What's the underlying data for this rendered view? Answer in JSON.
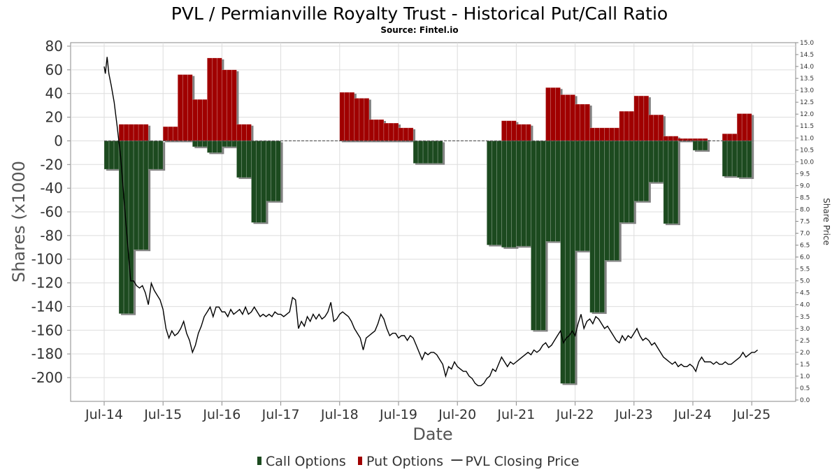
{
  "chart_data": {
    "type": "bar",
    "title": "PVL / Permianville Royalty Trust - Historical Put/Call Ratio",
    "subtitle": "Source: Fintel.io",
    "xlabel": "Date",
    "ylabel": "Shares (x1000",
    "y2label": "Share Price",
    "ylim": [
      -220,
      80
    ],
    "y2lim": [
      0,
      15
    ],
    "yticks": [
      "80",
      "60",
      "40",
      "20",
      "0",
      "-20",
      "-40",
      "-60",
      "-80",
      "-100",
      "-120",
      "-140",
      "-160",
      "-180",
      "-200"
    ],
    "y2ticks": [
      "15.0",
      "14.5",
      "14.0",
      "13.5",
      "13.0",
      "12.5",
      "12.0",
      "11.5",
      "11.0",
      "10.5",
      "10.0",
      "9.5",
      "9.0",
      "8.5",
      "8.0",
      "7.5",
      "7.0",
      "6.5",
      "6.0",
      "5.5",
      "5.0",
      "4.5",
      "4.0",
      "3.5",
      "3.0",
      "2.5",
      "2.0",
      "1.5",
      "1.0",
      "0.5",
      "0.0"
    ],
    "xticks": [
      "Jul-14",
      "Jul-15",
      "Jul-16",
      "Jul-17",
      "Jul-18",
      "Jul-19",
      "Jul-20",
      "Jul-21",
      "Jul-22",
      "Jul-23",
      "Jul-24",
      "Jul-25"
    ],
    "grid": true,
    "legend_position": "bottom",
    "legend": [
      {
        "label": "Call Options",
        "marker": "bar",
        "color": "#1c4a1f"
      },
      {
        "label": "Put Options",
        "marker": "bar",
        "color": "#a00000"
      },
      {
        "label": "PVL Closing Price",
        "marker": "line",
        "color": "#000000"
      }
    ],
    "colors": {
      "call": "#1c4a1f",
      "put": "#a00000",
      "price": "#000000",
      "shadow": "#808080"
    },
    "periods": [
      {
        "start": 2014.5,
        "end": 2014.75,
        "call": -24,
        "put": 0
      },
      {
        "start": 2014.75,
        "end": 2015.0,
        "call": -146,
        "put": 14
      },
      {
        "start": 2015.0,
        "end": 2015.25,
        "call": -92,
        "put": 14
      },
      {
        "start": 2015.25,
        "end": 2015.5,
        "call": -24,
        "put": 0
      },
      {
        "start": 2015.5,
        "end": 2015.75,
        "call": 0,
        "put": 12
      },
      {
        "start": 2015.75,
        "end": 2016.0,
        "call": 0,
        "put": 56
      },
      {
        "start": 2016.0,
        "end": 2016.25,
        "call": -5,
        "put": 35
      },
      {
        "start": 2016.25,
        "end": 2016.5,
        "call": -10,
        "put": 70
      },
      {
        "start": 2016.5,
        "end": 2016.75,
        "call": -5,
        "put": 60
      },
      {
        "start": 2016.75,
        "end": 2017.0,
        "call": -31,
        "put": 14
      },
      {
        "start": 2017.0,
        "end": 2017.25,
        "call": -69,
        "put": 0
      },
      {
        "start": 2017.25,
        "end": 2017.5,
        "call": -51,
        "put": 0
      },
      {
        "start": 2018.5,
        "end": 2018.75,
        "call": 0,
        "put": 41
      },
      {
        "start": 2018.75,
        "end": 2019.0,
        "call": 0,
        "put": 36
      },
      {
        "start": 2019.0,
        "end": 2019.25,
        "call": 0,
        "put": 18
      },
      {
        "start": 2019.25,
        "end": 2019.5,
        "call": 0,
        "put": 15
      },
      {
        "start": 2019.5,
        "end": 2019.75,
        "call": 0,
        "put": 11
      },
      {
        "start": 2019.75,
        "end": 2020.25,
        "call": -19,
        "put": 0
      },
      {
        "start": 2021.0,
        "end": 2021.25,
        "call": -88,
        "put": 0
      },
      {
        "start": 2021.25,
        "end": 2021.5,
        "call": -90,
        "put": 17
      },
      {
        "start": 2021.5,
        "end": 2021.75,
        "call": -89,
        "put": 14
      },
      {
        "start": 2021.75,
        "end": 2022.0,
        "call": -160,
        "put": 0
      },
      {
        "start": 2022.0,
        "end": 2022.25,
        "call": -85,
        "put": 45
      },
      {
        "start": 2022.25,
        "end": 2022.5,
        "call": -205,
        "put": 39
      },
      {
        "start": 2022.5,
        "end": 2022.75,
        "call": -93,
        "put": 31
      },
      {
        "start": 2022.75,
        "end": 2023.0,
        "call": -145,
        "put": 11
      },
      {
        "start": 2023.0,
        "end": 2023.25,
        "call": -101,
        "put": 11
      },
      {
        "start": 2023.25,
        "end": 2023.5,
        "call": -69,
        "put": 25
      },
      {
        "start": 2023.5,
        "end": 2023.75,
        "call": -51,
        "put": 38
      },
      {
        "start": 2023.75,
        "end": 2024.0,
        "call": -35,
        "put": 22
      },
      {
        "start": 2024.0,
        "end": 2024.25,
        "call": -70,
        "put": 4
      },
      {
        "start": 2024.25,
        "end": 2024.5,
        "call": 0,
        "put": 2
      },
      {
        "start": 2024.5,
        "end": 2024.75,
        "call": -8,
        "put": 2
      },
      {
        "start": 2025.0,
        "end": 2025.25,
        "call": -30,
        "put": 6
      },
      {
        "start": 2025.25,
        "end": 2025.5,
        "call": -31,
        "put": 23
      }
    ],
    "price": [
      [
        2014.5,
        14.0
      ],
      [
        2014.52,
        13.7
      ],
      [
        2014.55,
        14.4
      ],
      [
        2014.58,
        13.7
      ],
      [
        2014.62,
        13.2
      ],
      [
        2014.67,
        12.5
      ],
      [
        2014.72,
        11.5
      ],
      [
        2014.78,
        10.2
      ],
      [
        2014.85,
        8.0
      ],
      [
        2014.9,
        6.5
      ],
      [
        2014.95,
        5.0
      ],
      [
        2015.0,
        5.0
      ],
      [
        2015.05,
        4.8
      ],
      [
        2015.1,
        4.7
      ],
      [
        2015.15,
        4.8
      ],
      [
        2015.2,
        4.5
      ],
      [
        2015.25,
        4.0
      ],
      [
        2015.3,
        4.9
      ],
      [
        2015.35,
        4.6
      ],
      [
        2015.4,
        4.4
      ],
      [
        2015.45,
        4.2
      ],
      [
        2015.5,
        3.8
      ],
      [
        2015.55,
        3.0
      ],
      [
        2015.6,
        2.6
      ],
      [
        2015.65,
        2.9
      ],
      [
        2015.7,
        2.7
      ],
      [
        2015.75,
        2.8
      ],
      [
        2015.8,
        3.0
      ],
      [
        2015.85,
        3.3
      ],
      [
        2015.9,
        2.8
      ],
      [
        2015.95,
        2.5
      ],
      [
        2016.0,
        2.0
      ],
      [
        2016.05,
        2.3
      ],
      [
        2016.1,
        2.8
      ],
      [
        2016.15,
        3.1
      ],
      [
        2016.2,
        3.5
      ],
      [
        2016.25,
        3.7
      ],
      [
        2016.3,
        3.9
      ],
      [
        2016.35,
        3.5
      ],
      [
        2016.4,
        3.9
      ],
      [
        2016.45,
        3.9
      ],
      [
        2016.5,
        3.7
      ],
      [
        2016.55,
        3.7
      ],
      [
        2016.6,
        3.5
      ],
      [
        2016.65,
        3.8
      ],
      [
        2016.7,
        3.6
      ],
      [
        2016.75,
        3.7
      ],
      [
        2016.8,
        3.8
      ],
      [
        2016.85,
        3.6
      ],
      [
        2016.9,
        3.9
      ],
      [
        2016.95,
        3.6
      ],
      [
        2017.0,
        3.7
      ],
      [
        2017.05,
        3.9
      ],
      [
        2017.1,
        3.7
      ],
      [
        2017.15,
        3.5
      ],
      [
        2017.2,
        3.6
      ],
      [
        2017.25,
        3.5
      ],
      [
        2017.3,
        3.6
      ],
      [
        2017.35,
        3.5
      ],
      [
        2017.4,
        3.7
      ],
      [
        2017.45,
        3.6
      ],
      [
        2017.5,
        3.6
      ],
      [
        2017.55,
        3.5
      ],
      [
        2017.6,
        3.6
      ],
      [
        2017.65,
        3.7
      ],
      [
        2017.7,
        4.3
      ],
      [
        2017.75,
        4.2
      ],
      [
        2017.8,
        3.0
      ],
      [
        2017.85,
        3.3
      ],
      [
        2017.9,
        3.1
      ],
      [
        2017.95,
        3.5
      ],
      [
        2018.0,
        3.3
      ],
      [
        2018.05,
        3.6
      ],
      [
        2018.1,
        3.4
      ],
      [
        2018.15,
        3.6
      ],
      [
        2018.2,
        3.4
      ],
      [
        2018.25,
        3.5
      ],
      [
        2018.3,
        3.7
      ],
      [
        2018.35,
        4.1
      ],
      [
        2018.4,
        3.3
      ],
      [
        2018.45,
        3.4
      ],
      [
        2018.5,
        3.6
      ],
      [
        2018.55,
        3.7
      ],
      [
        2018.6,
        3.6
      ],
      [
        2018.65,
        3.5
      ],
      [
        2018.7,
        3.3
      ],
      [
        2018.75,
        3.0
      ],
      [
        2018.8,
        2.8
      ],
      [
        2018.85,
        2.6
      ],
      [
        2018.9,
        2.1
      ],
      [
        2018.95,
        2.6
      ],
      [
        2019.0,
        2.7
      ],
      [
        2019.05,
        2.8
      ],
      [
        2019.1,
        2.9
      ],
      [
        2019.15,
        3.2
      ],
      [
        2019.2,
        3.6
      ],
      [
        2019.25,
        3.4
      ],
      [
        2019.3,
        3.0
      ],
      [
        2019.35,
        2.7
      ],
      [
        2019.4,
        2.8
      ],
      [
        2019.45,
        2.8
      ],
      [
        2019.5,
        2.6
      ],
      [
        2019.55,
        2.7
      ],
      [
        2019.6,
        2.7
      ],
      [
        2019.65,
        2.5
      ],
      [
        2019.7,
        2.7
      ],
      [
        2019.75,
        2.6
      ],
      [
        2019.8,
        2.3
      ],
      [
        2019.85,
        2.0
      ],
      [
        2019.9,
        1.7
      ],
      [
        2019.95,
        2.0
      ],
      [
        2020.0,
        1.9
      ],
      [
        2020.05,
        2.0
      ],
      [
        2020.1,
        2.0
      ],
      [
        2020.15,
        1.9
      ],
      [
        2020.2,
        1.7
      ],
      [
        2020.25,
        1.5
      ],
      [
        2020.3,
        1.0
      ],
      [
        2020.35,
        1.4
      ],
      [
        2020.4,
        1.3
      ],
      [
        2020.45,
        1.6
      ],
      [
        2020.5,
        1.4
      ],
      [
        2020.55,
        1.3
      ],
      [
        2020.6,
        1.2
      ],
      [
        2020.65,
        1.2
      ],
      [
        2020.7,
        1.0
      ],
      [
        2020.75,
        0.9
      ],
      [
        2020.8,
        0.7
      ],
      [
        2020.85,
        0.6
      ],
      [
        2020.9,
        0.6
      ],
      [
        2020.95,
        0.7
      ],
      [
        2021.0,
        0.9
      ],
      [
        2021.05,
        1.0
      ],
      [
        2021.1,
        1.3
      ],
      [
        2021.15,
        1.2
      ],
      [
        2021.2,
        1.5
      ],
      [
        2021.25,
        1.8
      ],
      [
        2021.3,
        1.6
      ],
      [
        2021.35,
        1.4
      ],
      [
        2021.4,
        1.6
      ],
      [
        2021.45,
        1.5
      ],
      [
        2021.5,
        1.6
      ],
      [
        2021.55,
        1.7
      ],
      [
        2021.6,
        1.8
      ],
      [
        2021.65,
        1.9
      ],
      [
        2021.7,
        2.0
      ],
      [
        2021.75,
        1.9
      ],
      [
        2021.8,
        2.1
      ],
      [
        2021.85,
        2.0
      ],
      [
        2021.9,
        2.1
      ],
      [
        2021.95,
        2.3
      ],
      [
        2022.0,
        2.4
      ],
      [
        2022.05,
        2.2
      ],
      [
        2022.1,
        2.3
      ],
      [
        2022.15,
        2.5
      ],
      [
        2022.2,
        2.7
      ],
      [
        2022.25,
        2.9
      ],
      [
        2022.3,
        2.4
      ],
      [
        2022.35,
        2.6
      ],
      [
        2022.4,
        2.7
      ],
      [
        2022.45,
        2.9
      ],
      [
        2022.5,
        2.7
      ],
      [
        2022.55,
        3.2
      ],
      [
        2022.6,
        3.6
      ],
      [
        2022.65,
        3.0
      ],
      [
        2022.7,
        3.3
      ],
      [
        2022.75,
        3.4
      ],
      [
        2022.8,
        3.2
      ],
      [
        2022.85,
        3.5
      ],
      [
        2022.9,
        3.4
      ],
      [
        2022.95,
        3.2
      ],
      [
        2023.0,
        3.0
      ],
      [
        2023.05,
        3.1
      ],
      [
        2023.1,
        2.9
      ],
      [
        2023.15,
        2.7
      ],
      [
        2023.2,
        2.5
      ],
      [
        2023.25,
        2.4
      ],
      [
        2023.3,
        2.7
      ],
      [
        2023.35,
        2.5
      ],
      [
        2023.4,
        2.7
      ],
      [
        2023.45,
        2.6
      ],
      [
        2023.5,
        2.8
      ],
      [
        2023.55,
        3.0
      ],
      [
        2023.6,
        2.7
      ],
      [
        2023.65,
        2.5
      ],
      [
        2023.7,
        2.6
      ],
      [
        2023.75,
        2.5
      ],
      [
        2023.8,
        2.3
      ],
      [
        2023.85,
        2.4
      ],
      [
        2023.9,
        2.2
      ],
      [
        2023.95,
        2.0
      ],
      [
        2024.0,
        1.8
      ],
      [
        2024.05,
        1.7
      ],
      [
        2024.1,
        1.6
      ],
      [
        2024.15,
        1.5
      ],
      [
        2024.2,
        1.6
      ],
      [
        2024.25,
        1.4
      ],
      [
        2024.3,
        1.5
      ],
      [
        2024.35,
        1.4
      ],
      [
        2024.4,
        1.4
      ],
      [
        2024.45,
        1.5
      ],
      [
        2024.5,
        1.4
      ],
      [
        2024.55,
        1.2
      ],
      [
        2024.6,
        1.6
      ],
      [
        2024.65,
        1.8
      ],
      [
        2024.7,
        1.6
      ],
      [
        2024.75,
        1.6
      ],
      [
        2024.8,
        1.6
      ],
      [
        2024.85,
        1.5
      ],
      [
        2024.9,
        1.6
      ],
      [
        2024.95,
        1.5
      ],
      [
        2025.0,
        1.5
      ],
      [
        2025.05,
        1.6
      ],
      [
        2025.1,
        1.5
      ],
      [
        2025.15,
        1.5
      ],
      [
        2025.2,
        1.6
      ],
      [
        2025.25,
        1.7
      ],
      [
        2025.3,
        1.8
      ],
      [
        2025.35,
        2.0
      ],
      [
        2025.4,
        1.8
      ],
      [
        2025.45,
        1.9
      ],
      [
        2025.5,
        2.0
      ],
      [
        2025.55,
        2.0
      ],
      [
        2025.6,
        2.1
      ]
    ]
  }
}
